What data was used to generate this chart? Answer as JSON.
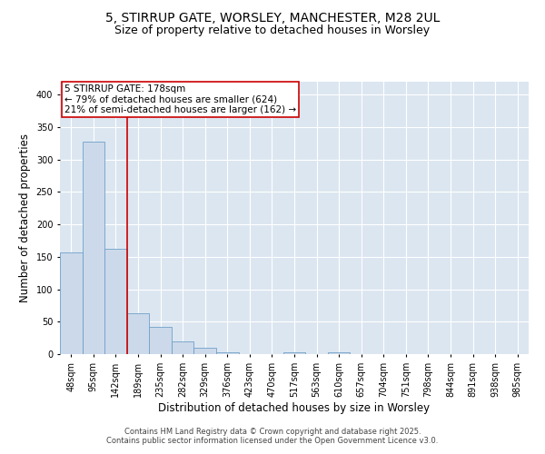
{
  "title_line1": "5, STIRRUP GATE, WORSLEY, MANCHESTER, M28 2UL",
  "title_line2": "Size of property relative to detached houses in Worsley",
  "xlabel": "Distribution of detached houses by size in Worsley",
  "ylabel": "Number of detached properties",
  "categories": [
    "48sqm",
    "95sqm",
    "142sqm",
    "189sqm",
    "235sqm",
    "282sqm",
    "329sqm",
    "376sqm",
    "423sqm",
    "470sqm",
    "517sqm",
    "563sqm",
    "610sqm",
    "657sqm",
    "704sqm",
    "751sqm",
    "798sqm",
    "844sqm",
    "891sqm",
    "938sqm",
    "985sqm"
  ],
  "values": [
    157,
    328,
    163,
    63,
    42,
    20,
    10,
    3,
    0,
    0,
    3,
    0,
    3,
    0,
    0,
    0,
    0,
    0,
    0,
    0,
    0
  ],
  "bar_color": "#ccd9ea",
  "bar_edge_color": "#6fa0c8",
  "vline_color": "#cc0000",
  "vline_bar_index": 2.5,
  "annotation_text": "5 STIRRUP GATE: 178sqm\n← 79% of detached houses are smaller (624)\n21% of semi-detached houses are larger (162) →",
  "annotation_box_color": "#cc0000",
  "ylim": [
    0,
    420
  ],
  "yticks": [
    0,
    50,
    100,
    150,
    200,
    250,
    300,
    350,
    400
  ],
  "background_color": "#dce6f1",
  "footer_text": "Contains HM Land Registry data © Crown copyright and database right 2025.\nContains public sector information licensed under the Open Government Licence v3.0.",
  "title_fontsize": 10,
  "subtitle_fontsize": 9,
  "axis_label_fontsize": 8.5,
  "tick_fontsize": 7,
  "annotation_fontsize": 7.5,
  "footer_fontsize": 6
}
